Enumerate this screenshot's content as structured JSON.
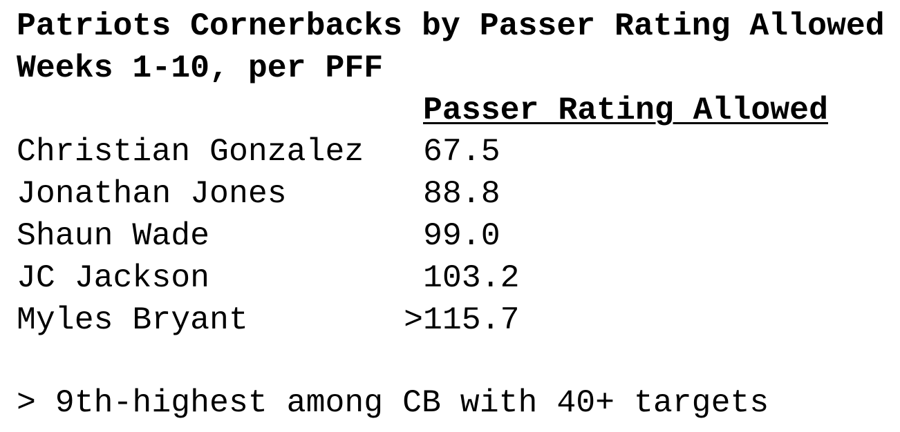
{
  "header": {
    "title": "Patriots Cornerbacks by Passer Rating Allowed",
    "subtitle": "Weeks 1-10, per PFF"
  },
  "table": {
    "column_header": "Passer Rating Allowed",
    "rows": [
      [
        "Christian Gonzalez",
        "67.5"
      ],
      [
        "Jonathan Jones",
        "88.8"
      ],
      [
        "Shaun Wade",
        "99.0"
      ],
      [
        "JC Jackson",
        "103.2"
      ],
      [
        "Myles Bryant",
        ">115.7"
      ]
    ]
  },
  "footnote": "> 9th-highest among CB with 40+ targets"
}
